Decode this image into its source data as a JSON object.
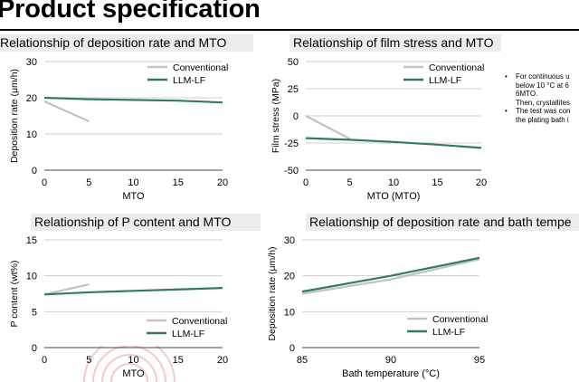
{
  "page": {
    "title": "Product specification"
  },
  "notes": [
    {
      "lines": [
        "For continuous u",
        "below 10 °C at 6",
        "6MTO."
      ],
      "bullet": true
    },
    {
      "lines": [
        "Then, crystallites"
      ],
      "bullet": false
    },
    {
      "lines": [
        "The test was con",
        "the plating bath i"
      ],
      "bullet": true
    }
  ],
  "colors": {
    "conventional": "#c2c2c2",
    "llm_lf": "#2e7d5b",
    "grid": "#d0d0d0",
    "title_bg": "#ececec"
  },
  "chart_data": [
    {
      "id": "dep-rate-mto",
      "type": "line",
      "title": "Relationship of deposition rate and MTO",
      "xlabel": "MTO",
      "ylabel": "Deposition rate (μm/h)",
      "xlim": [
        0,
        20
      ],
      "ylim": [
        0,
        30
      ],
      "xticks": [
        0,
        5,
        10,
        15,
        20
      ],
      "yticks": [
        0,
        10,
        20,
        30
      ],
      "legend": "top-right",
      "series": [
        {
          "name": "Conventional",
          "color": "#c2c2c2",
          "x": [
            0,
            5
          ],
          "y": [
            19,
            13.5
          ]
        },
        {
          "name": "LLM-LF",
          "color": "#2e7d5b",
          "x": [
            0,
            5,
            10,
            15,
            20
          ],
          "y": [
            20,
            19.6,
            19.4,
            19.2,
            18.7
          ]
        }
      ]
    },
    {
      "id": "film-stress-mto",
      "type": "line",
      "title": "Relationship of film stress and MTO",
      "xlabel": "MTO (MTO)",
      "ylabel": "Film stress (MPa)",
      "xlim": [
        0,
        20
      ],
      "ylim": [
        -50,
        50
      ],
      "xticks": [
        0,
        5,
        10,
        15,
        20
      ],
      "yticks": [
        -50,
        -25,
        0,
        25,
        50
      ],
      "legend": "top-right",
      "series": [
        {
          "name": "Conventional",
          "color": "#c2c2c2",
          "x": [
            0,
            5
          ],
          "y": [
            0,
            -21
          ]
        },
        {
          "name": "LLM-LF",
          "color": "#2e7d5b",
          "x": [
            0,
            5,
            10,
            15,
            20
          ],
          "y": [
            -20.5,
            -22,
            -24,
            -26.5,
            -29.5
          ]
        }
      ]
    },
    {
      "id": "p-content-mto",
      "type": "line",
      "title": "Relationship of P content and MTO",
      "xlabel": "MTO",
      "ylabel": "P content (wt%)",
      "xlim": [
        0,
        20
      ],
      "ylim": [
        0,
        15
      ],
      "xticks": [
        0,
        5,
        10,
        15,
        20
      ],
      "yticks": [
        0,
        5,
        10,
        15
      ],
      "legend": "bottom-right",
      "series": [
        {
          "name": "Conventional",
          "color": "#c2c2c2",
          "x": [
            0,
            5
          ],
          "y": [
            7.4,
            8.8
          ]
        },
        {
          "name": "LLM-LF",
          "color": "#2e7d5b",
          "x": [
            0,
            5,
            10,
            15,
            20
          ],
          "y": [
            7.4,
            7.7,
            7.9,
            8.1,
            8.3
          ]
        }
      ]
    },
    {
      "id": "dep-rate-bath-temp",
      "type": "line",
      "title": "Relationship of deposition rate and bath tempe",
      "xlabel": "Bath temperature (°C)",
      "ylabel": "Deposition rate (μm/h)",
      "xlim": [
        85,
        95
      ],
      "ylim": [
        0,
        30
      ],
      "xticks": [
        85,
        90,
        95
      ],
      "yticks": [
        0,
        10,
        20,
        30
      ],
      "legend": "bottom-right",
      "series": [
        {
          "name": "Conventional",
          "color": "#c2c2c2",
          "x": [
            85,
            90,
            95
          ],
          "y": [
            15,
            19,
            24.6
          ]
        },
        {
          "name": "LLM-LF",
          "color": "#2e7d5b",
          "x": [
            85,
            90,
            95
          ],
          "y": [
            15.6,
            20,
            25
          ]
        }
      ]
    }
  ]
}
